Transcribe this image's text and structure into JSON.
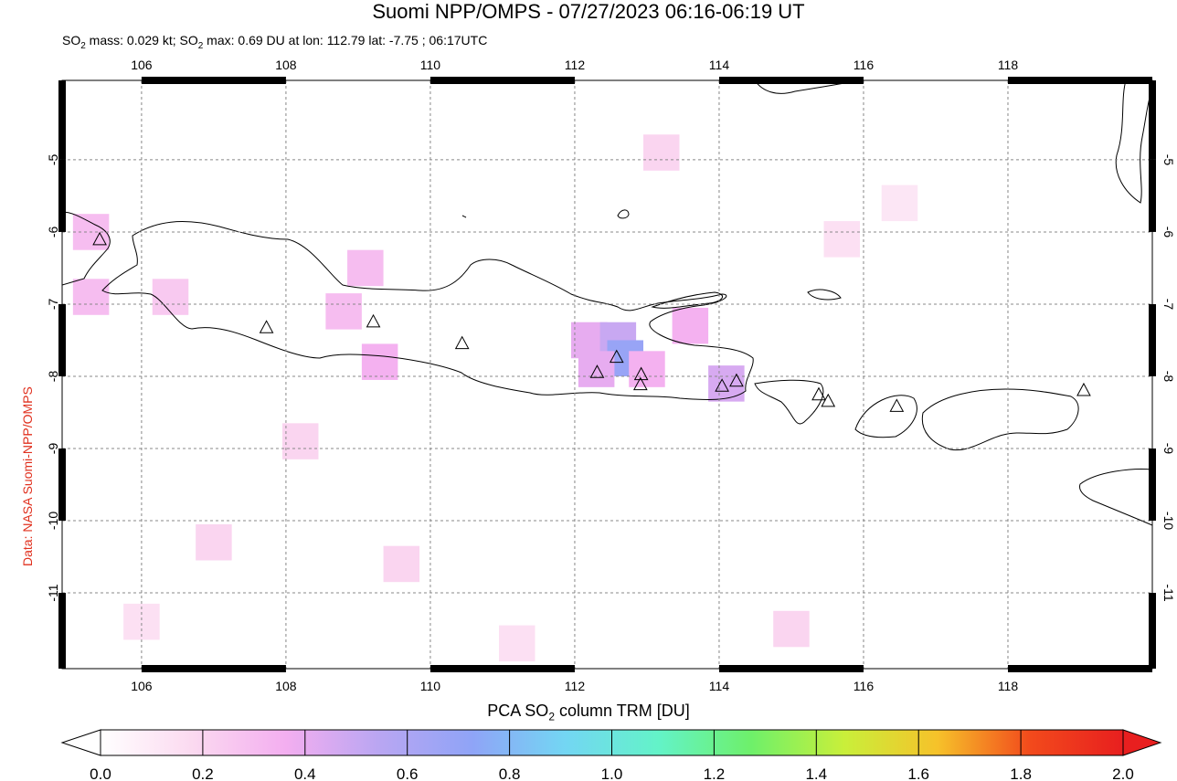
{
  "title_prefix": "Suomi NPP/OMPS - ",
  "title_time": "07/27/2023 06:16-06:19 UT",
  "subtitle": {
    "mass_prefix": "SO",
    "mass_sub": "2",
    "mass_text": " mass: 0.029 kt; SO",
    "max_sub": "2",
    "max_text": " max: 0.69 DU at lon: 112.79 lat: -7.75 ; 06:17UTC"
  },
  "credit": "Data: NASA Suomi-NPP/OMPS",
  "colorbar": {
    "title_prefix": "PCA SO",
    "title_sub": "2",
    "title_suffix": " column TRM [DU]",
    "ticks": [
      "0.0",
      "0.2",
      "0.4",
      "0.6",
      "0.8",
      "1.0",
      "1.2",
      "1.4",
      "1.6",
      "1.8",
      "2.0"
    ],
    "range": [
      0,
      2
    ],
    "stops": [
      "#ffffff",
      "#fbd9f0",
      "#f3aef0",
      "#b9a6f2",
      "#8fa4f7",
      "#73d6f3",
      "#63f3c8",
      "#6ef06a",
      "#c9ef3a",
      "#f6c22a",
      "#f24a1c",
      "#e81f1f"
    ]
  },
  "map": {
    "lon_range": [
      104.9,
      120.0
    ],
    "lat_range": [
      -12.05,
      -3.9
    ],
    "lon_ticks": [
      "106",
      "108",
      "110",
      "112",
      "114",
      "116",
      "118"
    ],
    "lat_ticks": [
      "-5",
      "-6",
      "-7",
      "-8",
      "-9",
      "-10",
      "-11"
    ],
    "volcanoes": [
      {
        "lon": 105.42,
        "lat": -6.1
      },
      {
        "lon": 107.73,
        "lat": -7.32
      },
      {
        "lon": 109.21,
        "lat": -7.24
      },
      {
        "lon": 110.44,
        "lat": -7.54
      },
      {
        "lon": 112.31,
        "lat": -7.94
      },
      {
        "lon": 112.58,
        "lat": -7.73
      },
      {
        "lon": 112.92,
        "lat": -7.97
      },
      {
        "lon": 112.91,
        "lat": -8.11
      },
      {
        "lon": 114.04,
        "lat": -8.13
      },
      {
        "lon": 114.24,
        "lat": -8.06
      },
      {
        "lon": 115.38,
        "lat": -8.25
      },
      {
        "lon": 115.51,
        "lat": -8.34
      },
      {
        "lon": 116.46,
        "lat": -8.41
      },
      {
        "lon": 119.05,
        "lat": -8.19
      }
    ],
    "so2_cells": [
      {
        "lon": 112.2,
        "lat": -7.5,
        "v": 0.4
      },
      {
        "lon": 112.6,
        "lat": -7.5,
        "v": 0.5
      },
      {
        "lon": 112.7,
        "lat": -7.75,
        "v": 0.69
      },
      {
        "lon": 112.3,
        "lat": -7.9,
        "v": 0.4
      },
      {
        "lon": 113.0,
        "lat": -7.9,
        "v": 0.35
      },
      {
        "lon": 113.6,
        "lat": -7.3,
        "v": 0.35
      },
      {
        "lon": 114.1,
        "lat": -8.1,
        "v": 0.45
      },
      {
        "lon": 109.1,
        "lat": -6.5,
        "v": 0.3
      },
      {
        "lon": 109.3,
        "lat": -7.8,
        "v": 0.35
      },
      {
        "lon": 105.3,
        "lat": -6.0,
        "v": 0.3
      },
      {
        "lon": 105.3,
        "lat": -6.9,
        "v": 0.3
      },
      {
        "lon": 106.4,
        "lat": -6.9,
        "v": 0.25
      },
      {
        "lon": 108.8,
        "lat": -7.1,
        "v": 0.3
      },
      {
        "lon": 108.2,
        "lat": -8.9,
        "v": 0.2
      },
      {
        "lon": 107.0,
        "lat": -10.3,
        "v": 0.2
      },
      {
        "lon": 109.6,
        "lat": -10.6,
        "v": 0.2
      },
      {
        "lon": 113.2,
        "lat": -4.9,
        "v": 0.2
      },
      {
        "lon": 115.7,
        "lat": -6.1,
        "v": 0.15
      },
      {
        "lon": 116.5,
        "lat": -5.6,
        "v": 0.12
      },
      {
        "lon": 106.0,
        "lat": -11.4,
        "v": 0.15
      },
      {
        "lon": 111.2,
        "lat": -11.7,
        "v": 0.15
      },
      {
        "lon": 115.0,
        "lat": -11.5,
        "v": 0.2
      }
    ]
  }
}
